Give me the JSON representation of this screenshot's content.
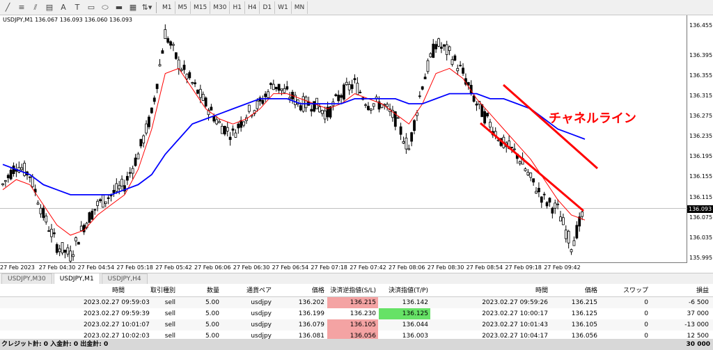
{
  "toolbar": {
    "timeframes": [
      "M1",
      "M5",
      "M15",
      "M30",
      "H1",
      "H4",
      "D1",
      "W1",
      "MN"
    ],
    "text_tool": "A",
    "label_tool": "T"
  },
  "chart": {
    "info": "USDJPY,M1  136.067 136.093 136.060 136.093",
    "annotation": "チャネルライン",
    "current_price": "136.093",
    "colors": {
      "candle": "#000000",
      "ma_fast": "#ff0000",
      "ma_slow": "#0000ff",
      "channel": "#ff0000",
      "annotation": "#ff0000"
    }
  },
  "chart_data": {
    "type": "line",
    "symbol": "USDJPY",
    "timeframe": "M1",
    "price_ticks": [
      "136.455",
      "136.395",
      "136.355",
      "136.315",
      "136.275",
      "136.235",
      "136.195",
      "136.155",
      "136.115",
      "136.075",
      "136.035",
      "135.995"
    ],
    "time_ticks": [
      "27 Feb 2023",
      "27 Feb 04:30",
      "27 Feb 04:54",
      "27 Feb 05:18",
      "27 Feb 05:42",
      "27 Feb 06:06",
      "27 Feb 06:30",
      "27 Feb 06:54",
      "27 Feb 07:18",
      "27 Feb 07:42",
      "27 Feb 08:06",
      "27 Feb 08:30",
      "27 Feb 08:54",
      "27 Feb 09:18",
      "27 Feb 09:42"
    ],
    "ylim": [
      135.985,
      136.475
    ],
    "series": [
      {
        "name": "close",
        "values": [
          136.14,
          136.18,
          136.16,
          136.08,
          136.02,
          136.0,
          136.06,
          136.1,
          136.12,
          136.14,
          136.2,
          136.28,
          136.44,
          136.38,
          136.34,
          136.3,
          136.26,
          136.24,
          136.28,
          136.3,
          136.34,
          136.32,
          136.3,
          136.3,
          136.28,
          136.32,
          136.34,
          136.3,
          136.3,
          136.27,
          136.21,
          136.34,
          136.42,
          136.4,
          136.36,
          136.3,
          136.26,
          136.22,
          136.2,
          136.15,
          136.11,
          136.09,
          136.02,
          136.09
        ]
      },
      {
        "name": "ma_fast",
        "values": [
          136.13,
          136.15,
          136.14,
          136.1,
          136.06,
          136.04,
          136.05,
          136.08,
          136.1,
          136.12,
          136.17,
          136.25,
          136.36,
          136.37,
          136.33,
          136.29,
          136.27,
          136.26,
          136.27,
          136.29,
          136.32,
          136.32,
          136.31,
          136.3,
          136.29,
          136.3,
          136.32,
          136.31,
          136.3,
          136.28,
          136.26,
          136.3,
          136.36,
          136.37,
          136.35,
          136.31,
          136.28,
          136.25,
          136.22,
          136.19,
          136.15,
          136.11,
          136.08,
          136.07
        ]
      },
      {
        "name": "ma_slow",
        "values": [
          136.18,
          136.17,
          136.16,
          136.14,
          136.13,
          136.12,
          136.12,
          136.12,
          136.12,
          136.13,
          136.14,
          136.16,
          136.2,
          136.23,
          136.26,
          136.27,
          136.28,
          136.29,
          136.3,
          136.31,
          136.31,
          136.31,
          136.3,
          136.3,
          136.3,
          136.3,
          136.31,
          136.31,
          136.31,
          136.31,
          136.3,
          136.3,
          136.31,
          136.32,
          136.32,
          136.32,
          136.31,
          136.31,
          136.3,
          136.29,
          136.27,
          136.25,
          136.24,
          136.23
        ]
      }
    ]
  },
  "tabs": [
    "USDJPY,M30",
    "USDJPY,M1",
    "USDJPY,H4"
  ],
  "active_tab": 1,
  "table": {
    "headers": [
      "時間",
      "取引種別",
      "数量",
      "通貨ペア",
      "価格",
      "決済逆指値(S/L)",
      "決済指値(T/P)",
      "時間",
      "価格",
      "スワップ",
      "損益"
    ],
    "rows": [
      [
        "2023.02.27 09:59:03",
        "sell",
        "5.00",
        "usdjpy",
        "136.202",
        "136.215",
        "136.142",
        "2023.02.27 09:59:26",
        "136.215",
        "0",
        "-6 500"
      ],
      [
        "2023.02.27 09:59:39",
        "sell",
        "5.00",
        "usdjpy",
        "136.199",
        "136.230",
        "136.125",
        "2023.02.27 10:00:17",
        "136.125",
        "0",
        "37 000"
      ],
      [
        "2023.02.27 10:01:07",
        "sell",
        "5.00",
        "usdjpy",
        "136.079",
        "136.105",
        "136.044",
        "2023.02.27 10:01:43",
        "136.105",
        "0",
        "-13 000"
      ],
      [
        "2023.02.27 10:02:03",
        "sell",
        "5.00",
        "usdjpy",
        "136.081",
        "136.056",
        "136.003",
        "2023.02.27 10:04:17",
        "136.056",
        "0",
        "12 500"
      ]
    ],
    "footer_left": "クレジット計: 0  入金計: 0  出金計: 0",
    "footer_right": "30 000"
  }
}
